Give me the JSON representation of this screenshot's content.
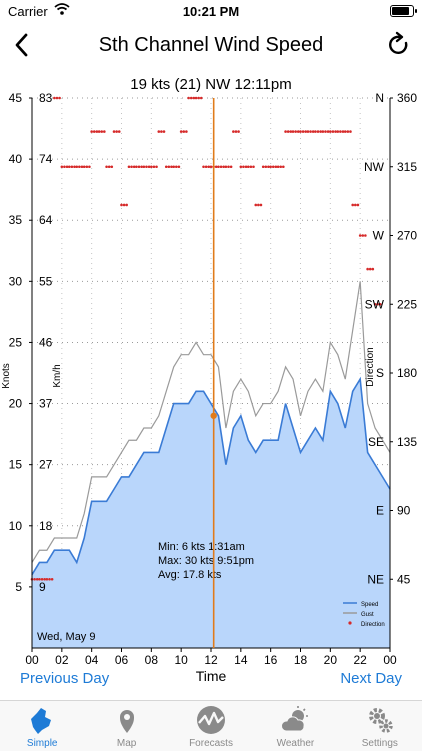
{
  "status_bar": {
    "carrier": "Carrier",
    "time": "10:21 PM"
  },
  "nav": {
    "title": "Sth Channel Wind Speed"
  },
  "readout": {
    "text": "19  kts (21)  NW  12:11pm"
  },
  "chart_data": {
    "type": "area",
    "title": "",
    "xlabel": "Time",
    "ylabel_left": "Knots",
    "ylabel_kmh": "Km/h",
    "ylabel_right": "Direction",
    "x_ticks": [
      "00",
      "02",
      "04",
      "06",
      "08",
      "10",
      "12",
      "14",
      "16",
      "18",
      "20",
      "22",
      "00"
    ],
    "x_range_hours": [
      0,
      24
    ],
    "knots_ticks": [
      "5",
      "10",
      "15",
      "20",
      "25",
      "30",
      "35",
      "40",
      "45"
    ],
    "kmh_ticks": [
      "9",
      "18",
      "27",
      "37",
      "46",
      "55",
      "64",
      "74",
      "83"
    ],
    "kmh_ticks_values_knots": [
      5,
      10,
      15,
      20,
      25,
      30,
      35,
      40,
      45
    ],
    "direction_ticks": [
      {
        "label": "NE",
        "deg": "45"
      },
      {
        "label": "E",
        "deg": "90"
      },
      {
        "label": "SE",
        "deg": "135"
      },
      {
        "label": "S",
        "deg": "180"
      },
      {
        "label": "SW",
        "deg": "225"
      },
      {
        "label": "W",
        "deg": "270"
      },
      {
        "label": "NW",
        "deg": "315"
      },
      {
        "label": "N",
        "deg": "360"
      }
    ],
    "y_range_knots": [
      0,
      45
    ],
    "direction_range_deg": [
      0,
      360
    ],
    "date_label": "Wed, May 9",
    "cursor_time_hours": 12.18,
    "cursor_value_knots": 19,
    "grid": true,
    "legend_position": "bottom-right",
    "stats": {
      "min": "Min:  6 kts  1:31am",
      "max": "Max:  30 kts  9:51pm",
      "avg": "Avg:  17.8 kts"
    },
    "colors": {
      "speed_fill": "#b9d6fb",
      "speed_line": "#3a7bd5",
      "gust_line": "#9a9a9a",
      "direction": "#d62a2a",
      "cursor": "#e07b1a"
    },
    "series": [
      {
        "name": "Speed",
        "x": [
          0,
          0.5,
          1,
          1.5,
          2,
          2.5,
          3,
          3.5,
          4,
          4.5,
          5,
          5.5,
          6,
          6.5,
          7,
          7.5,
          8,
          8.5,
          9,
          9.5,
          10,
          10.5,
          11,
          11.5,
          12,
          12.5,
          13,
          13.5,
          14,
          14.5,
          15,
          15.5,
          16,
          16.5,
          17,
          17.5,
          18,
          18.5,
          19,
          19.5,
          20,
          20.5,
          21,
          21.5,
          22,
          22.5,
          23,
          23.5,
          24
        ],
        "values": [
          6,
          7,
          7,
          8,
          8,
          8,
          7,
          9,
          12,
          12,
          12,
          13,
          14,
          14,
          15,
          16,
          16,
          16,
          18,
          20,
          20,
          20,
          21,
          21,
          20,
          19,
          15,
          18,
          19,
          17,
          16,
          17,
          17,
          17,
          20,
          18,
          16,
          17,
          18,
          17,
          21,
          20,
          18,
          21,
          22,
          16,
          15,
          14,
          13
        ]
      },
      {
        "name": "Gust",
        "x": [
          0,
          0.5,
          1,
          1.5,
          2,
          2.5,
          3,
          3.5,
          4,
          4.5,
          5,
          5.5,
          6,
          6.5,
          7,
          7.5,
          8,
          8.5,
          9,
          9.5,
          10,
          10.5,
          11,
          11.5,
          12,
          12.5,
          13,
          13.5,
          14,
          14.5,
          15,
          15.5,
          16,
          16.5,
          17,
          17.5,
          18,
          18.5,
          19,
          19.5,
          20,
          20.5,
          21,
          21.5,
          22,
          22.5,
          23,
          23.5,
          24
        ],
        "values": [
          7,
          8,
          8,
          9,
          9,
          9,
          9,
          11,
          14,
          14,
          14,
          15,
          16,
          17,
          17,
          18,
          18,
          19,
          21,
          23,
          24,
          24,
          25,
          24,
          24,
          23,
          18,
          21,
          22,
          21,
          19,
          20,
          20,
          21,
          23,
          22,
          19,
          21,
          22,
          21,
          25,
          24,
          22,
          26,
          30,
          20,
          18,
          17,
          16
        ]
      },
      {
        "name": "Direction",
        "x": [
          0,
          0.5,
          1,
          1.5,
          2,
          2.5,
          3,
          3.5,
          4,
          4.5,
          5,
          5.5,
          6,
          6.5,
          7,
          7.5,
          8,
          8.5,
          9,
          9.5,
          10,
          10.5,
          11,
          11.5,
          12,
          12.5,
          13,
          13.5,
          14,
          14.5,
          15,
          15.5,
          16,
          16.5,
          17,
          17.5,
          18,
          18.5,
          19,
          19.5,
          20,
          20.5,
          21,
          21.5,
          22,
          22.5,
          23
        ],
        "values": [
          45,
          45,
          45,
          360,
          315,
          315,
          315,
          315,
          338,
          338,
          315,
          338,
          290,
          315,
          315,
          315,
          315,
          338,
          315,
          315,
          338,
          360,
          360,
          315,
          315,
          315,
          315,
          338,
          315,
          315,
          290,
          315,
          315,
          315,
          338,
          338,
          338,
          338,
          338,
          338,
          338,
          338,
          338,
          290,
          270,
          248,
          225
        ]
      }
    ]
  },
  "day_nav": {
    "previous": "Previous Day",
    "next": "Next Day"
  },
  "tabs": [
    {
      "label": "Simple",
      "icon": "island-map-icon",
      "active": true
    },
    {
      "label": "Map",
      "icon": "map-pin-icon",
      "active": false
    },
    {
      "label": "Forecasts",
      "icon": "forecast-chart-icon",
      "active": false
    },
    {
      "label": "Weather",
      "icon": "weather-cloud-sun-icon",
      "active": false
    },
    {
      "label": "Settings",
      "icon": "gears-icon",
      "active": false
    }
  ]
}
